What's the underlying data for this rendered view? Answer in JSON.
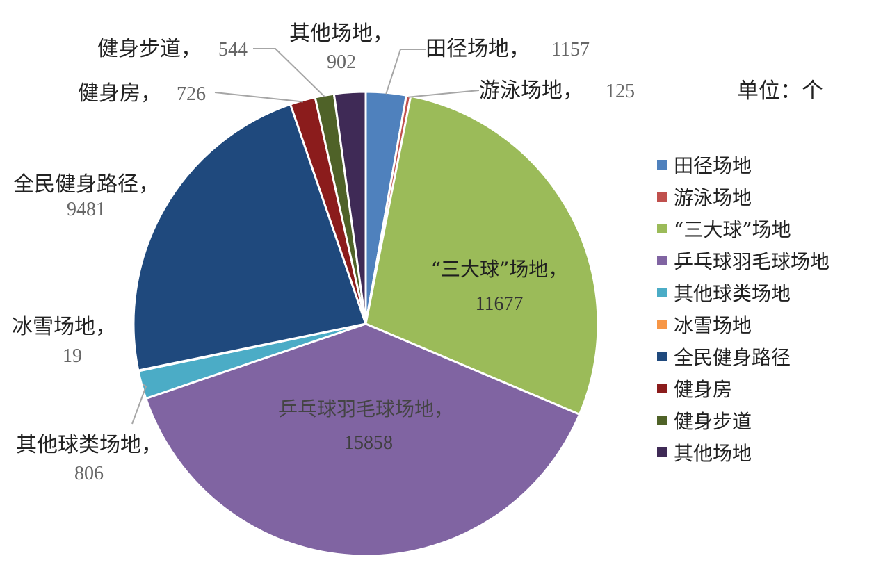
{
  "chart_data": {
    "type": "pie",
    "unit_label": "单位：个",
    "legend_position": "right",
    "start_angle_deg": 0,
    "direction": "clockwise",
    "slices": [
      {
        "category": "田径场地",
        "value": 1157,
        "label": "田径场地，",
        "value_text": "1157",
        "color": "#4F81BD"
      },
      {
        "category": "游泳场地",
        "value": 125,
        "label": "游泳场地，",
        "value_text": "125",
        "color": "#C0504D"
      },
      {
        "category": "“三大球”场地",
        "value": 11677,
        "label": "“三大球”场地，",
        "value_text": "11677",
        "color": "#9BBB59"
      },
      {
        "category": "乒乓球羽毛球场地",
        "value": 15858,
        "label": "乒乓球羽毛球场地，",
        "value_text": "15858",
        "color": "#8064A2"
      },
      {
        "category": "其他球类场地",
        "value": 806,
        "label": "其他球类场地，",
        "value_text": "806",
        "color": "#4BACC6"
      },
      {
        "category": "冰雪场地",
        "value": 19,
        "label": "冰雪场地，",
        "value_text": "19",
        "color": "#F79646"
      },
      {
        "category": "全民健身路径",
        "value": 9481,
        "label": "全民健身路径，",
        "value_text": "9481",
        "color": "#1F497D"
      },
      {
        "category": "健身房",
        "value": 726,
        "label": "健身房，",
        "value_text": "726",
        "color": "#8B1C1C"
      },
      {
        "category": "健身步道",
        "value": 544,
        "label": "健身步道，",
        "value_text": "544",
        "color": "#4F6228"
      },
      {
        "category": "其他场地",
        "value": 902,
        "label": "其他场地，",
        "value_text": "902",
        "color": "#3F2A56"
      }
    ]
  }
}
